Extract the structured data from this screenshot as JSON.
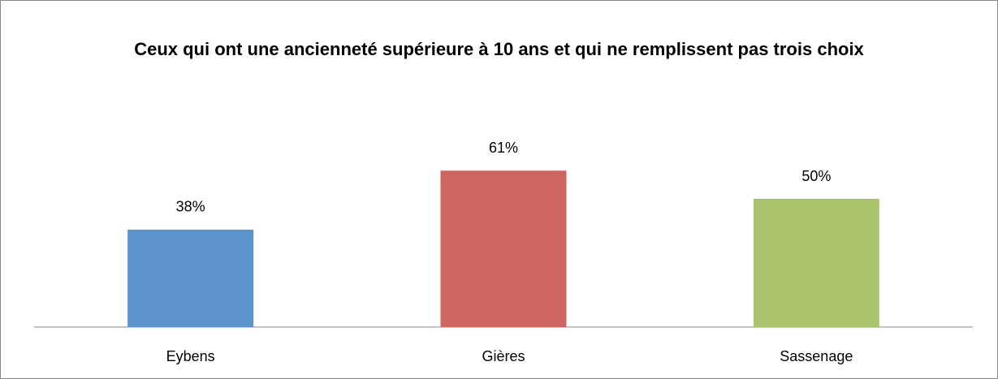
{
  "chart_data": {
    "type": "bar",
    "title": "Ceux qui ont une ancienneté supérieure à 10 ans et qui ne remplissent pas trois choix",
    "categories": [
      "Eybens",
      "Gières",
      "Sassenage"
    ],
    "values": [
      38,
      61,
      50
    ],
    "value_labels": [
      "38%",
      "61%",
      "50%"
    ],
    "colors": [
      "#5b93cc",
      "#cd6660",
      "#a9c46c"
    ]
  }
}
